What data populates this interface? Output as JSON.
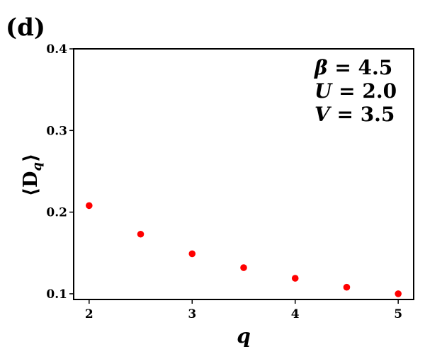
{
  "panel_label": "(d)",
  "chart_data": {
    "type": "scatter",
    "title": "",
    "xlabel": "q",
    "ylabel_text": "⟨D",
    "ylabel_sub": "q",
    "ylabel_close": "⟩",
    "xlim": [
      1.85,
      5.15
    ],
    "ylim": [
      0.093,
      0.4
    ],
    "xticks": [
      2,
      3,
      4,
      5
    ],
    "xtick_labels": [
      "2",
      "3",
      "4",
      "5"
    ],
    "yticks": [
      0.1,
      0.2,
      0.3,
      0.4
    ],
    "ytick_labels": [
      "0.1",
      "0.2",
      "0.3",
      "0.4"
    ],
    "grid": false,
    "marker_color": "#ff0000",
    "series": [
      {
        "x": [
          2.0,
          2.5,
          3.0,
          3.5,
          4.0,
          4.5,
          5.0
        ],
        "y": [
          0.208,
          0.173,
          0.149,
          0.132,
          0.119,
          0.108,
          0.1
        ]
      }
    ],
    "annotations": [
      {
        "symbol": "β",
        "value": " = 4.5"
      },
      {
        "symbol": "U",
        "value": " = 2.0"
      },
      {
        "symbol": "V",
        "value": " = 3.5"
      }
    ]
  }
}
